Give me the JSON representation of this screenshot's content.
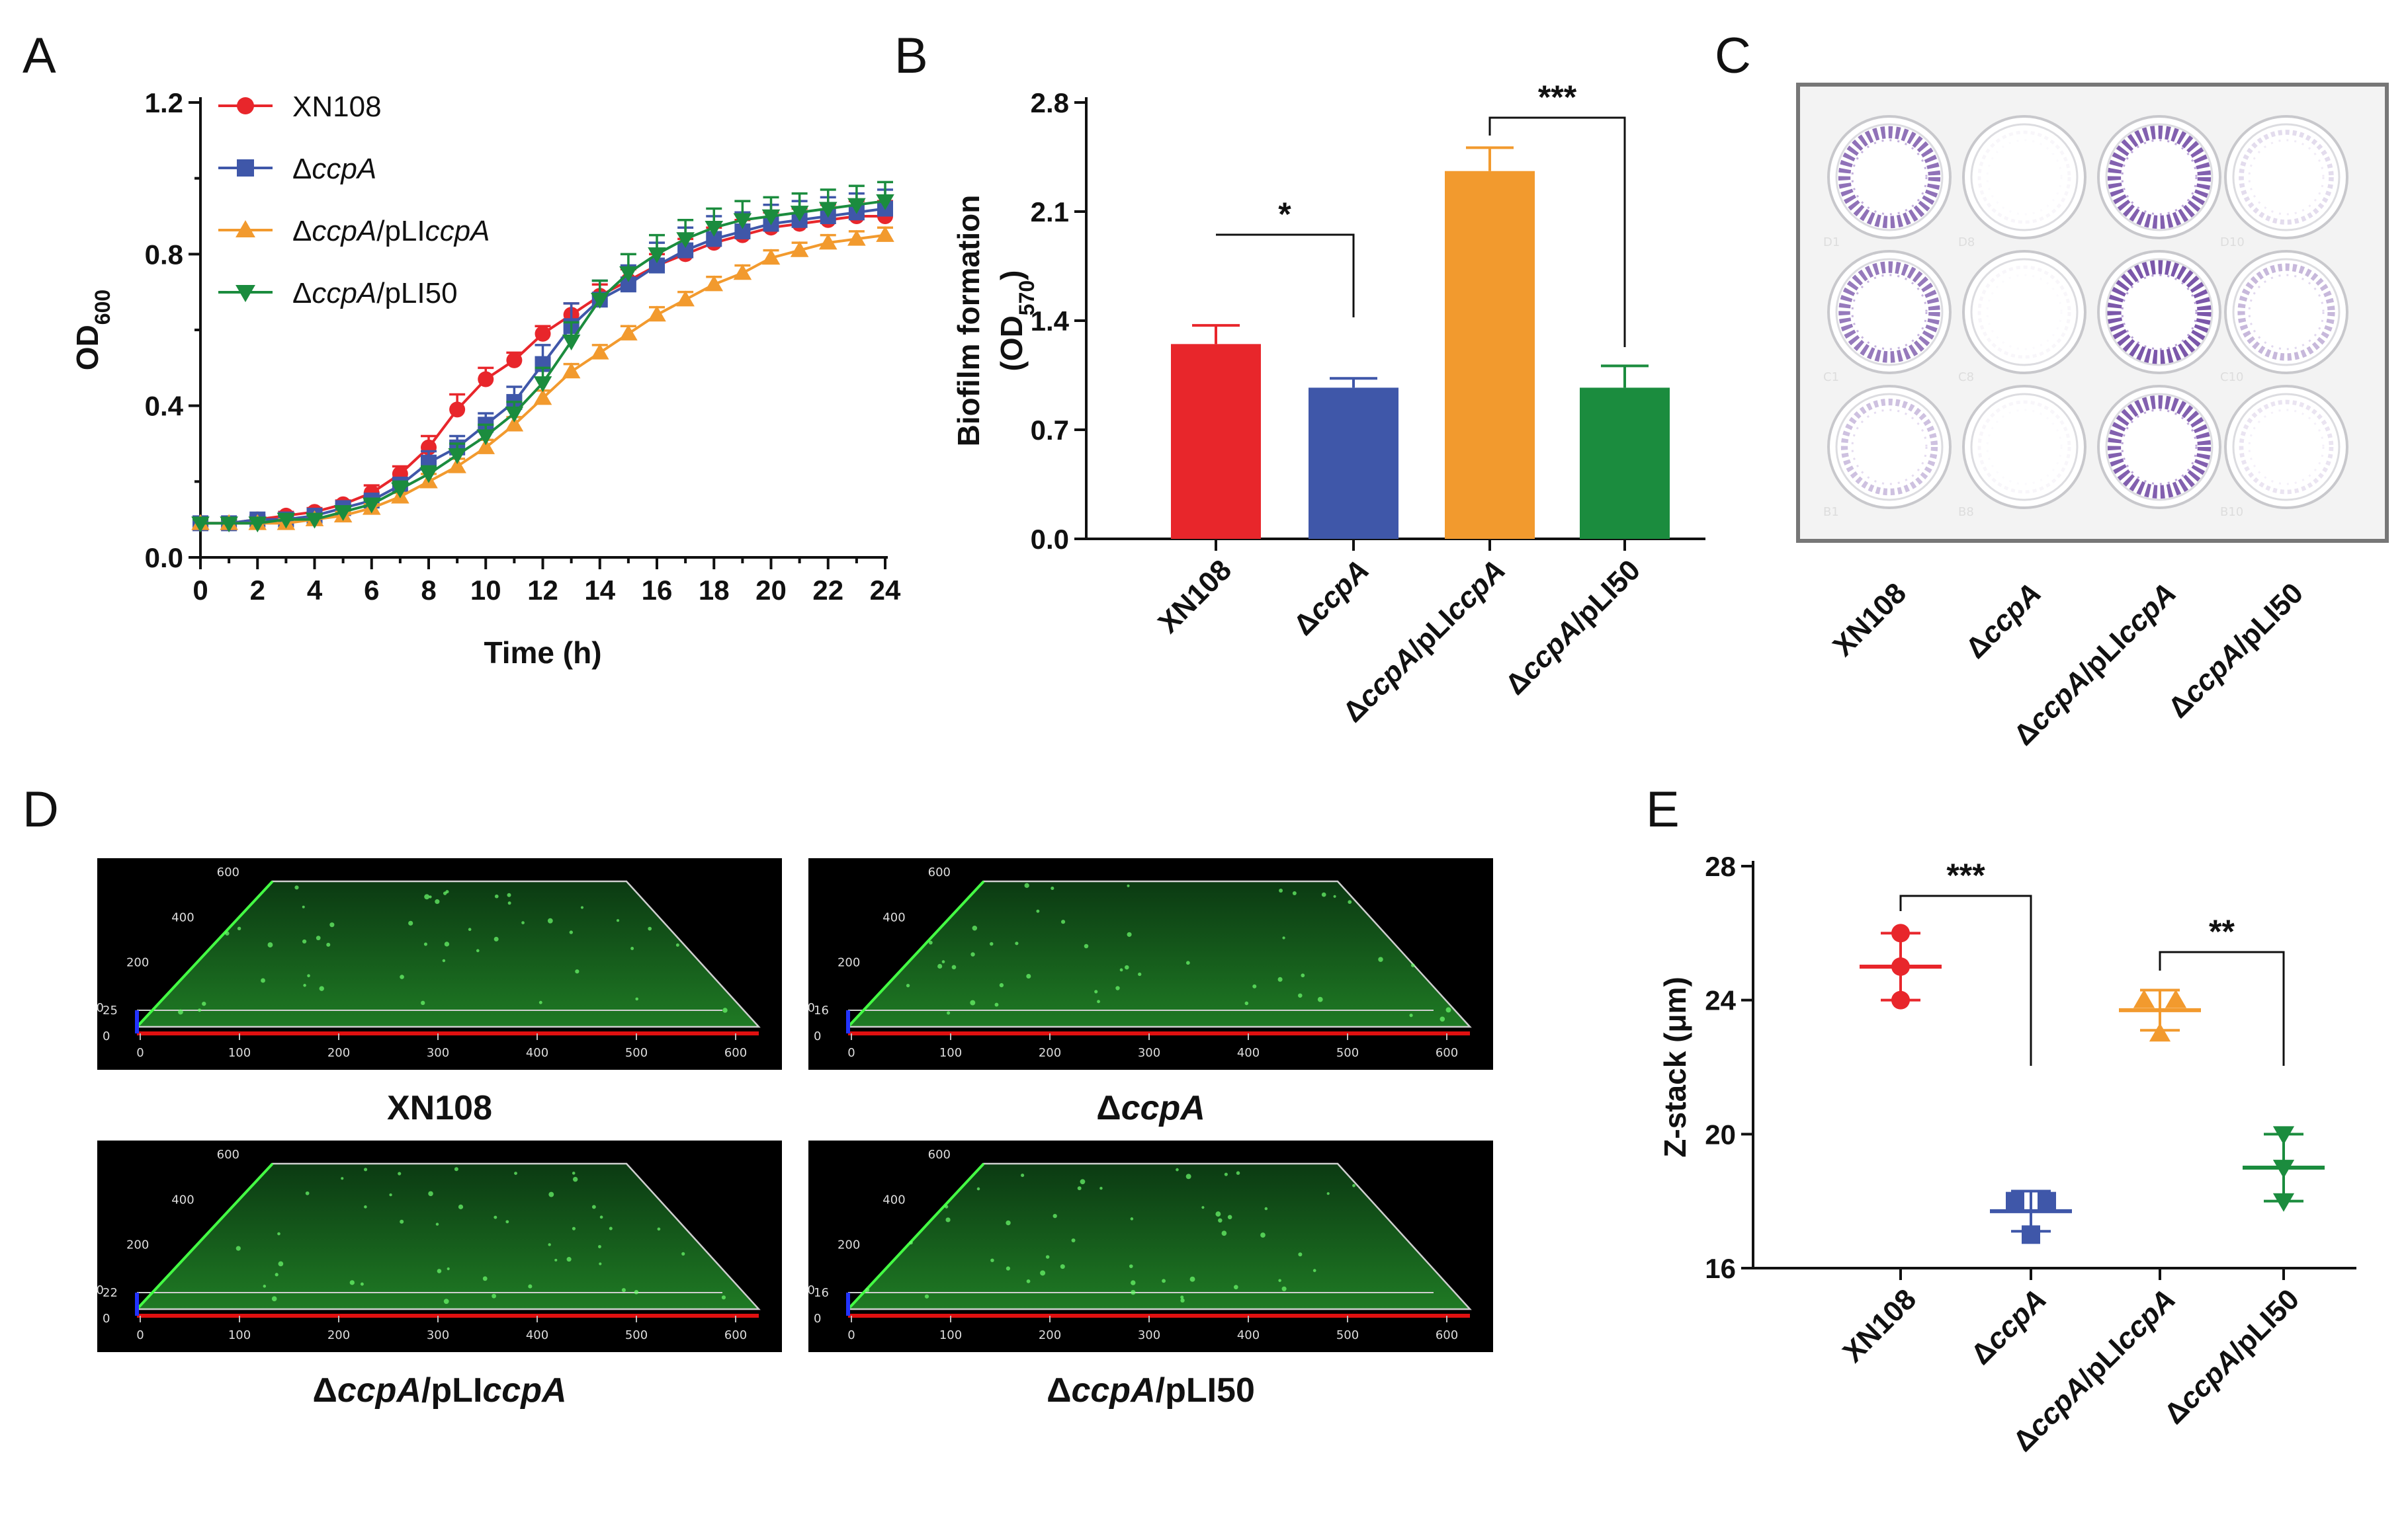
{
  "panels": {
    "A": "A",
    "B": "B",
    "C": "C",
    "D": "D",
    "E": "E"
  },
  "colors": {
    "xn108": "#e8262b",
    "ccpA": "#3f57a9",
    "pliccpA": "#f29a2e",
    "pli50": "#1b8c3e"
  },
  "chart_data": [
    {
      "id": "A",
      "type": "line",
      "xlabel": "Time (h)",
      "ylabel": "OD",
      "ylabel_sub": "600",
      "xlim": [
        0,
        24
      ],
      "ylim": [
        0.0,
        1.2
      ],
      "xticks": [
        "0",
        "2",
        "4",
        "6",
        "8",
        "10",
        "12",
        "14",
        "16",
        "18",
        "20",
        "22",
        "24"
      ],
      "yticks": [
        "0.0",
        "0.4",
        "0.8",
        "1.2"
      ],
      "x": [
        0,
        1,
        2,
        3,
        4,
        5,
        6,
        7,
        8,
        9,
        10,
        11,
        12,
        13,
        14,
        15,
        16,
        17,
        18,
        19,
        20,
        21,
        22,
        23,
        24
      ],
      "series": [
        {
          "name": "XN108",
          "label_parts": [
            [
              "XN108",
              false
            ]
          ],
          "color_key": "xn108",
          "marker": "circle",
          "values": [
            0.09,
            0.09,
            0.1,
            0.11,
            0.12,
            0.14,
            0.17,
            0.22,
            0.29,
            0.39,
            0.47,
            0.52,
            0.59,
            0.64,
            0.69,
            0.73,
            0.77,
            0.8,
            0.83,
            0.85,
            0.87,
            0.88,
            0.89,
            0.9,
            0.9
          ],
          "errors": [
            0.01,
            0.01,
            0.01,
            0.01,
            0.01,
            0.01,
            0.02,
            0.02,
            0.03,
            0.04,
            0.03,
            0.02,
            0.02,
            0.03,
            0.03,
            0.03,
            0.03,
            0.04,
            0.04,
            0.04,
            0.04,
            0.04,
            0.04,
            0.04,
            0.04
          ]
        },
        {
          "name": "ΔccpA",
          "label_parts": [
            [
              "Δ",
              false
            ],
            [
              "ccpA",
              true
            ]
          ],
          "color_key": "ccpA",
          "marker": "square",
          "values": [
            0.09,
            0.09,
            0.1,
            0.1,
            0.11,
            0.13,
            0.15,
            0.19,
            0.25,
            0.29,
            0.35,
            0.41,
            0.51,
            0.61,
            0.68,
            0.72,
            0.77,
            0.81,
            0.84,
            0.86,
            0.88,
            0.89,
            0.9,
            0.91,
            0.92
          ],
          "errors": [
            0.01,
            0.01,
            0.01,
            0.01,
            0.01,
            0.01,
            0.01,
            0.02,
            0.03,
            0.03,
            0.03,
            0.04,
            0.05,
            0.06,
            0.05,
            0.05,
            0.06,
            0.06,
            0.06,
            0.05,
            0.05,
            0.05,
            0.05,
            0.05,
            0.05
          ]
        },
        {
          "name": "ΔccpA/pLIccpA",
          "label_parts": [
            [
              "Δ",
              false
            ],
            [
              "ccpA",
              true
            ],
            [
              "/pLI",
              false
            ],
            [
              "ccpA",
              true
            ]
          ],
          "color_key": "pliccpA",
          "marker": "triangle-up",
          "values": [
            0.09,
            0.09,
            0.09,
            0.09,
            0.1,
            0.11,
            0.13,
            0.16,
            0.2,
            0.24,
            0.29,
            0.35,
            0.42,
            0.49,
            0.54,
            0.59,
            0.64,
            0.68,
            0.72,
            0.75,
            0.79,
            0.81,
            0.83,
            0.84,
            0.85
          ],
          "errors": [
            0.01,
            0.01,
            0.01,
            0.01,
            0.01,
            0.01,
            0.01,
            0.01,
            0.02,
            0.02,
            0.02,
            0.02,
            0.02,
            0.02,
            0.02,
            0.02,
            0.02,
            0.02,
            0.02,
            0.02,
            0.02,
            0.02,
            0.02,
            0.02,
            0.02
          ]
        },
        {
          "name": "ΔccpA/pLI50",
          "label_parts": [
            [
              "Δ",
              false
            ],
            [
              "ccpA",
              true
            ],
            [
              "/pLI50",
              false
            ]
          ],
          "color_key": "pli50",
          "marker": "triangle-down",
          "values": [
            0.09,
            0.09,
            0.09,
            0.1,
            0.1,
            0.12,
            0.14,
            0.18,
            0.22,
            0.27,
            0.32,
            0.38,
            0.46,
            0.57,
            0.68,
            0.75,
            0.8,
            0.84,
            0.87,
            0.89,
            0.9,
            0.91,
            0.92,
            0.93,
            0.94
          ],
          "errors": [
            0.01,
            0.01,
            0.01,
            0.01,
            0.01,
            0.01,
            0.01,
            0.02,
            0.02,
            0.03,
            0.03,
            0.03,
            0.04,
            0.05,
            0.05,
            0.05,
            0.05,
            0.05,
            0.05,
            0.05,
            0.05,
            0.05,
            0.05,
            0.05,
            0.05
          ]
        }
      ]
    },
    {
      "id": "B",
      "type": "bar",
      "ylabel": "Biofilm formation",
      "ylabel2_prefix": "(OD",
      "ylabel2_sub": "570",
      "ylabel2_suffix": ")",
      "ylim": [
        0.0,
        2.8
      ],
      "yticks": [
        "0.0",
        "0.7",
        "1.4",
        "2.1",
        "2.8"
      ],
      "categories": [
        {
          "name": "XN108",
          "parts": [
            [
              "XN108",
              false
            ]
          ]
        },
        {
          "name": "ΔccpA",
          "parts": [
            [
              "Δ",
              false
            ],
            [
              "ccpA",
              true
            ]
          ]
        },
        {
          "name": "ΔccpA/pLIccpA",
          "parts": [
            [
              "Δ",
              false
            ],
            [
              "ccpA",
              true
            ],
            [
              "/pLI",
              false
            ],
            [
              "ccpA",
              true
            ]
          ]
        },
        {
          "name": "ΔccpA/pLI50",
          "parts": [
            [
              "Δ",
              false
            ],
            [
              "ccpA",
              true
            ],
            [
              "/pLI50",
              false
            ]
          ]
        }
      ],
      "values": [
        1.25,
        0.97,
        2.36,
        0.97
      ],
      "errors": [
        0.12,
        0.06,
        0.15,
        0.14
      ],
      "color_keys": [
        "xn108",
        "ccpA",
        "pliccpA",
        "pli50"
      ],
      "significance": [
        {
          "from": 0,
          "to": 1,
          "label": "*"
        },
        {
          "from": 2,
          "to": 3,
          "label": "***"
        }
      ]
    },
    {
      "id": "E",
      "type": "scatter",
      "ylabel": "Z-stack (μm)",
      "ylim": [
        16,
        28
      ],
      "yticks": [
        "16",
        "20",
        "24",
        "28"
      ],
      "categories": [
        {
          "name": "XN108",
          "parts": [
            [
              "XN108",
              false
            ]
          ]
        },
        {
          "name": "ΔccpA",
          "parts": [
            [
              "Δ",
              false
            ],
            [
              "ccpA",
              true
            ]
          ]
        },
        {
          "name": "ΔccpA/pLIccpA",
          "parts": [
            [
              "Δ",
              false
            ],
            [
              "ccpA",
              true
            ],
            [
              "/pLI",
              false
            ],
            [
              "ccpA",
              true
            ]
          ]
        },
        {
          "name": "ΔccpA/pLI50",
          "parts": [
            [
              "Δ",
              false
            ],
            [
              "ccpA",
              true
            ],
            [
              "/pLI50",
              false
            ]
          ]
        }
      ],
      "points": [
        [
          26,
          25,
          24
        ],
        [
          18,
          18,
          17
        ],
        [
          24,
          24,
          23
        ],
        [
          20,
          19,
          18
        ]
      ],
      "means": [
        25.0,
        17.7,
        23.7,
        19.0
      ],
      "sd": [
        1.0,
        0.6,
        0.6,
        1.0
      ],
      "markers": [
        "circle",
        "square",
        "triangle-up",
        "triangle-down"
      ],
      "color_keys": [
        "xn108",
        "ccpA",
        "pliccpA",
        "pli50"
      ],
      "significance": [
        {
          "from": 0,
          "to": 1,
          "label": "***"
        },
        {
          "from": 2,
          "to": 3,
          "label": "**"
        }
      ]
    }
  ],
  "plate": {
    "well_labels": [
      [
        "D1",
        "D8",
        "",
        "D10"
      ],
      [
        "C1",
        "C8",
        "",
        "C10"
      ],
      [
        "B1",
        "B8",
        "",
        "B10"
      ]
    ],
    "stain_levels": [
      [
        0.8,
        0.05,
        0.9,
        0.2
      ],
      [
        0.75,
        0.05,
        0.95,
        0.4
      ],
      [
        0.35,
        0.05,
        0.9,
        0.15
      ]
    ],
    "captions": [
      {
        "parts": [
          [
            "XN108",
            false
          ]
        ]
      },
      {
        "parts": [
          [
            "Δ",
            false
          ],
          [
            "ccpA",
            true
          ]
        ]
      },
      {
        "parts": [
          [
            "Δ",
            false
          ],
          [
            "ccpA",
            true
          ],
          [
            "/pLI",
            false
          ],
          [
            "ccpA",
            true
          ]
        ]
      },
      {
        "parts": [
          [
            "Δ",
            false
          ],
          [
            "ccpA",
            true
          ],
          [
            "/pLI50",
            false
          ]
        ]
      }
    ]
  },
  "confocal": {
    "x_ticks": [
      "0",
      "100",
      "200",
      "300",
      "400",
      "500",
      "600"
    ],
    "depth_ticks": [
      "0",
      "200",
      "400",
      "600"
    ],
    "images": [
      {
        "caption_parts": [
          [
            "XN108",
            false
          ]
        ],
        "z_value": "25"
      },
      {
        "caption_parts": [
          [
            "Δ",
            false
          ],
          [
            "ccpA",
            true
          ]
        ],
        "z_value": "16"
      },
      {
        "caption_parts": [
          [
            "Δ",
            false
          ],
          [
            "ccpA",
            true
          ],
          [
            "/pLI",
            false
          ],
          [
            "ccpA",
            true
          ]
        ],
        "z_value": "22"
      },
      {
        "caption_parts": [
          [
            "Δ",
            false
          ],
          [
            "ccpA",
            true
          ],
          [
            "/pLI50",
            false
          ]
        ],
        "z_value": "16"
      }
    ]
  }
}
